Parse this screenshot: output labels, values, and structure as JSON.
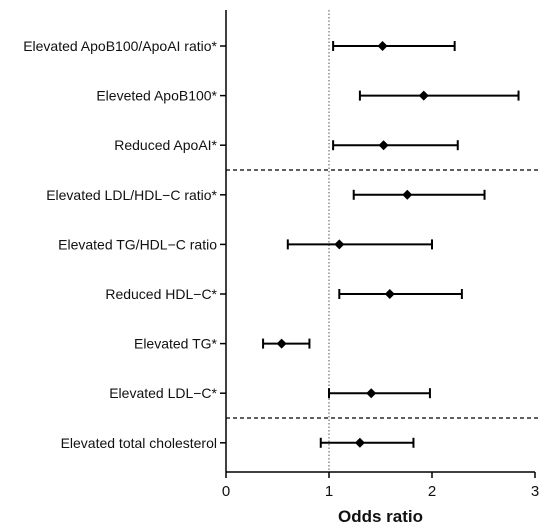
{
  "chart_data": {
    "type": "forest",
    "xlabel": "Odds ratio",
    "xlim": [
      0,
      3
    ],
    "xticks": [
      0,
      1,
      2,
      3
    ],
    "reference_line": 1,
    "rows": [
      {
        "label": "Elevated ApoB100/ApoAI ratio*",
        "or": 1.52,
        "ci": [
          1.04,
          2.22
        ]
      },
      {
        "label": "Eleveted ApoB100*",
        "or": 1.92,
        "ci": [
          1.3,
          2.84
        ]
      },
      {
        "label": "Reduced ApoAI*",
        "or": 1.53,
        "ci": [
          1.04,
          2.25
        ]
      },
      {
        "label": "Elevated LDL/HDL−C ratio*",
        "or": 1.76,
        "ci": [
          1.24,
          2.51
        ]
      },
      {
        "label": "Elevated TG/HDL−C ratio",
        "or": 1.1,
        "ci": [
          0.6,
          2.0
        ]
      },
      {
        "label": "Reduced HDL−C*",
        "or": 1.59,
        "ci": [
          1.1,
          2.29
        ]
      },
      {
        "label": "Elevated TG*",
        "or": 0.54,
        "ci": [
          0.36,
          0.81
        ]
      },
      {
        "label": "Elevated LDL−C*",
        "or": 1.41,
        "ci": [
          1.0,
          1.98
        ]
      },
      {
        "label": "Elevated total cholesterol",
        "or": 1.3,
        "ci": [
          0.92,
          1.82
        ]
      }
    ],
    "group_separators_after_rows": [
      3,
      8
    ],
    "colors": {
      "marker": "#000000",
      "axis": "#000000",
      "reference_line": "#555555"
    }
  }
}
